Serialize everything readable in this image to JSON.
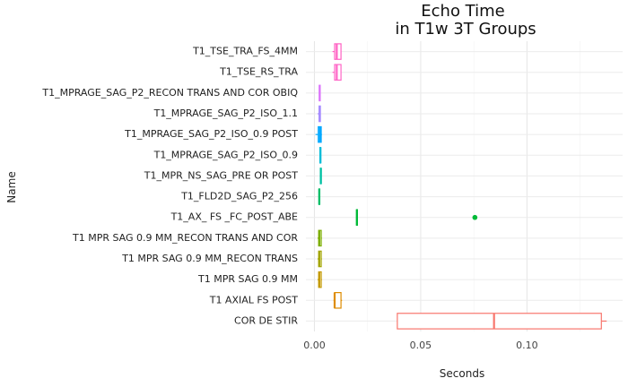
{
  "chart_data": {
    "type": "boxplot",
    "title_line1": "Echo Time",
    "title_line2": "in T1w 3T Groups",
    "xlabel": "Seconds",
    "ylabel": "Name",
    "xlim": [
      -0.004,
      0.145
    ],
    "xticks": [
      0.0,
      0.05,
      0.1
    ],
    "xtick_labels": [
      "0.00",
      "0.05",
      "0.10"
    ],
    "grid": true,
    "categories": [
      "T1_TSE_TRA_FS_4MM",
      "T1_TSE_RS_TRA",
      "T1_MPRAGE_SAG_P2_RECON TRANS AND COR OBIQ",
      "T1_MPRAGE_SAG_P2_ISO_1.1",
      "T1_MPRAGE_SAG_P2_ISO_0.9 POST",
      "T1_MPRAGE_SAG_P2_ISO_0.9",
      "T1_MPR_NS_SAG_PRE OR POST",
      "T1_FLD2D_SAG_P2_256",
      "T1_AX_ FS _FC_POST_ABE",
      "T1 MPR SAG 0.9 MM_RECON TRANS AND COR",
      "T1 MPR SAG 0.9 MM_RECON TRANS",
      "T1 MPR SAG 0.9 MM",
      "T1 AXIAL FS POST",
      "COR DE STIR"
    ],
    "boxes": [
      {
        "min": 0.0085,
        "q1": 0.0095,
        "median": 0.0105,
        "q3": 0.0125,
        "max": 0.0125,
        "outliers": [],
        "color": "#FF61C3"
      },
      {
        "min": 0.0085,
        "q1": 0.0095,
        "median": 0.0105,
        "q3": 0.0125,
        "max": 0.0125,
        "outliers": [],
        "color": "#FF66C7"
      },
      {
        "min": 0.0025,
        "q1": 0.0025,
        "median": 0.0025,
        "q3": 0.0025,
        "max": 0.0025,
        "outliers": [],
        "color": "#DB72FB"
      },
      {
        "min": 0.0015,
        "q1": 0.0022,
        "median": 0.0025,
        "q3": 0.0028,
        "max": 0.0028,
        "outliers": [],
        "color": "#A58AFF"
      },
      {
        "min": 0.0005,
        "q1": 0.0018,
        "median": 0.0025,
        "q3": 0.0032,
        "max": 0.0035,
        "outliers": [],
        "color": "#00A9FF"
      },
      {
        "min": 0.0028,
        "q1": 0.0028,
        "median": 0.0028,
        "q3": 0.0028,
        "max": 0.0028,
        "outliers": [],
        "color": "#00BCD8"
      },
      {
        "min": 0.003,
        "q1": 0.003,
        "median": 0.003,
        "q3": 0.003,
        "max": 0.003,
        "outliers": [],
        "color": "#00C1A3"
      },
      {
        "min": 0.0023,
        "q1": 0.0023,
        "median": 0.0023,
        "q3": 0.0023,
        "max": 0.0023,
        "outliers": [],
        "color": "#00BE67"
      },
      {
        "min": 0.02,
        "q1": 0.02,
        "median": 0.02,
        "q3": 0.02,
        "max": 0.02,
        "outliers": [
          0.0755
        ],
        "color": "#00BA38"
      },
      {
        "min": 0.0015,
        "q1": 0.002,
        "median": 0.0023,
        "q3": 0.0032,
        "max": 0.0035,
        "outliers": [],
        "color": "#7CAE00"
      },
      {
        "min": 0.0015,
        "q1": 0.002,
        "median": 0.0023,
        "q3": 0.0032,
        "max": 0.0035,
        "outliers": [],
        "color": "#A3A500"
      },
      {
        "min": 0.0015,
        "q1": 0.002,
        "median": 0.0023,
        "q3": 0.0032,
        "max": 0.0035,
        "outliers": [],
        "color": "#C49A00"
      },
      {
        "min": 0.009,
        "q1": 0.0095,
        "median": 0.0095,
        "q3": 0.0125,
        "max": 0.013,
        "outliers": [],
        "color": "#DE8C00"
      },
      {
        "min": 0.039,
        "q1": 0.039,
        "median": 0.0845,
        "q3": 0.135,
        "max": 0.1375,
        "outliers": [],
        "color": "#F8766D"
      }
    ]
  }
}
